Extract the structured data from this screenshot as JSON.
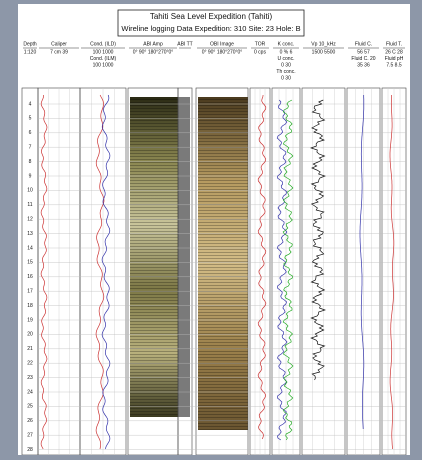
{
  "header": {
    "title": "Tahiti Sea Level Expedition (Tahiti)",
    "subtitle": "Wireline logging Data   Expedition: 310   Site: 23   Hole: B"
  },
  "tracks": [
    {
      "name": "Depth",
      "lines": [
        "1:120"
      ]
    },
    {
      "name": "Caliper",
      "lines": [
        "7   cm   39"
      ]
    },
    {
      "name": "Cond. (ILD)",
      "lines": [
        "100        1000",
        "Cond. (ILM)",
        "100        1000"
      ]
    },
    {
      "name": "ABI Amp",
      "lines": [
        "0° 90° 180°270°0°"
      ]
    },
    {
      "name": "ABI TT",
      "lines": []
    },
    {
      "name": "OBI Image",
      "lines": [
        "0° 90° 180°270°0°"
      ]
    },
    {
      "name": "TOR",
      "lines": [
        "0  cps"
      ]
    },
    {
      "name": "K conc.",
      "lines": [
        "0   %   6",
        "U conc.",
        "0      30",
        "Th conc.",
        "0      30"
      ]
    },
    {
      "name": "Vp 10_kHz",
      "lines": [
        "1500      5500"
      ]
    },
    {
      "name": "Fluid C.",
      "lines": [
        "56       57",
        "Fluid C. 20",
        "35       36"
      ]
    },
    {
      "name": "Fluid T.",
      "lines": [
        "26  C  28",
        "Fluid pH",
        "7.5     8.5"
      ]
    }
  ],
  "depths": [
    4,
    5,
    6,
    7,
    8,
    9,
    10,
    11,
    12,
    13,
    14,
    15,
    16,
    17,
    18,
    19,
    20,
    21,
    22,
    23,
    24,
    25,
    26,
    27,
    28
  ]
}
